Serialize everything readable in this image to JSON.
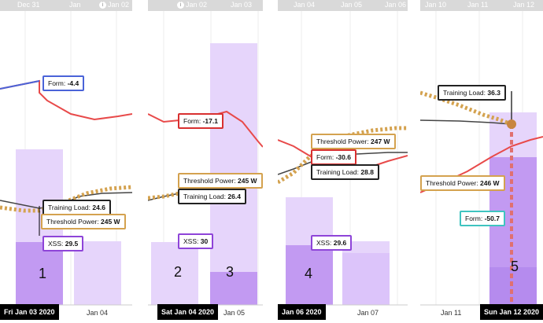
{
  "panel1": {
    "top": [
      "Dec 31",
      "Jan",
      "Jan 02"
    ],
    "tips": {
      "form": "Form: ",
      "form_v": "-4.4",
      "tl": "Training Load: ",
      "tl_v": "24.6",
      "tp": "Threshold Power: ",
      "tp_v": "245 W",
      "xss": "XSS: ",
      "xss_v": "29.5"
    },
    "number": "1",
    "axis_selected": "Fri Jan 03 2020",
    "axis_next": "Jan 04"
  },
  "panel2": {
    "top": [
      "Jan 02",
      "Jan 03"
    ],
    "tips": {
      "form": "Form: ",
      "form_v": "-17.1",
      "tp": "Threshold Power: ",
      "tp_v": "245 W",
      "tl": "Training Load: ",
      "tl_v": "26.4",
      "xss": "XSS: ",
      "xss_v": "30"
    },
    "numbers": [
      "2",
      "3"
    ],
    "axis_selected": "Sat Jan 04 2020",
    "axis_next": "Jan 05"
  },
  "panel3": {
    "top": [
      "Jan 04",
      "Jan 05",
      "Jan 06"
    ],
    "tips": {
      "tp": "Threshold Power: ",
      "tp_v": "247 W",
      "form": "Form: ",
      "form_v": "-30.6",
      "tl": "Training Load: ",
      "tl_v": "28.8",
      "xss": "XSS: ",
      "xss_v": "29.6"
    },
    "number": "4",
    "axis_selected": "Jan 06 2020",
    "axis_next": "Jan 07"
  },
  "panel4": {
    "top": [
      "Jan 10",
      "Jan 11",
      "Jan 12"
    ],
    "tips": {
      "tl": "Training Load: ",
      "tl_v": "36.3",
      "tp": "Threshold Power: ",
      "tp_v": "246 W",
      "form": "Form: ",
      "form_v": "-50.7"
    },
    "number": "5",
    "axis_prev": "Jan 11",
    "axis_selected": "Sun Jan 12 2020"
  },
  "colors": {
    "form_line": "#e84a4a",
    "form_line_p1": "#4a63d8",
    "load_line": "#444444",
    "threshold_dots": "#d4a24f",
    "bar_light": "#e6d5fb",
    "bar_dark": "#c29af2"
  }
}
